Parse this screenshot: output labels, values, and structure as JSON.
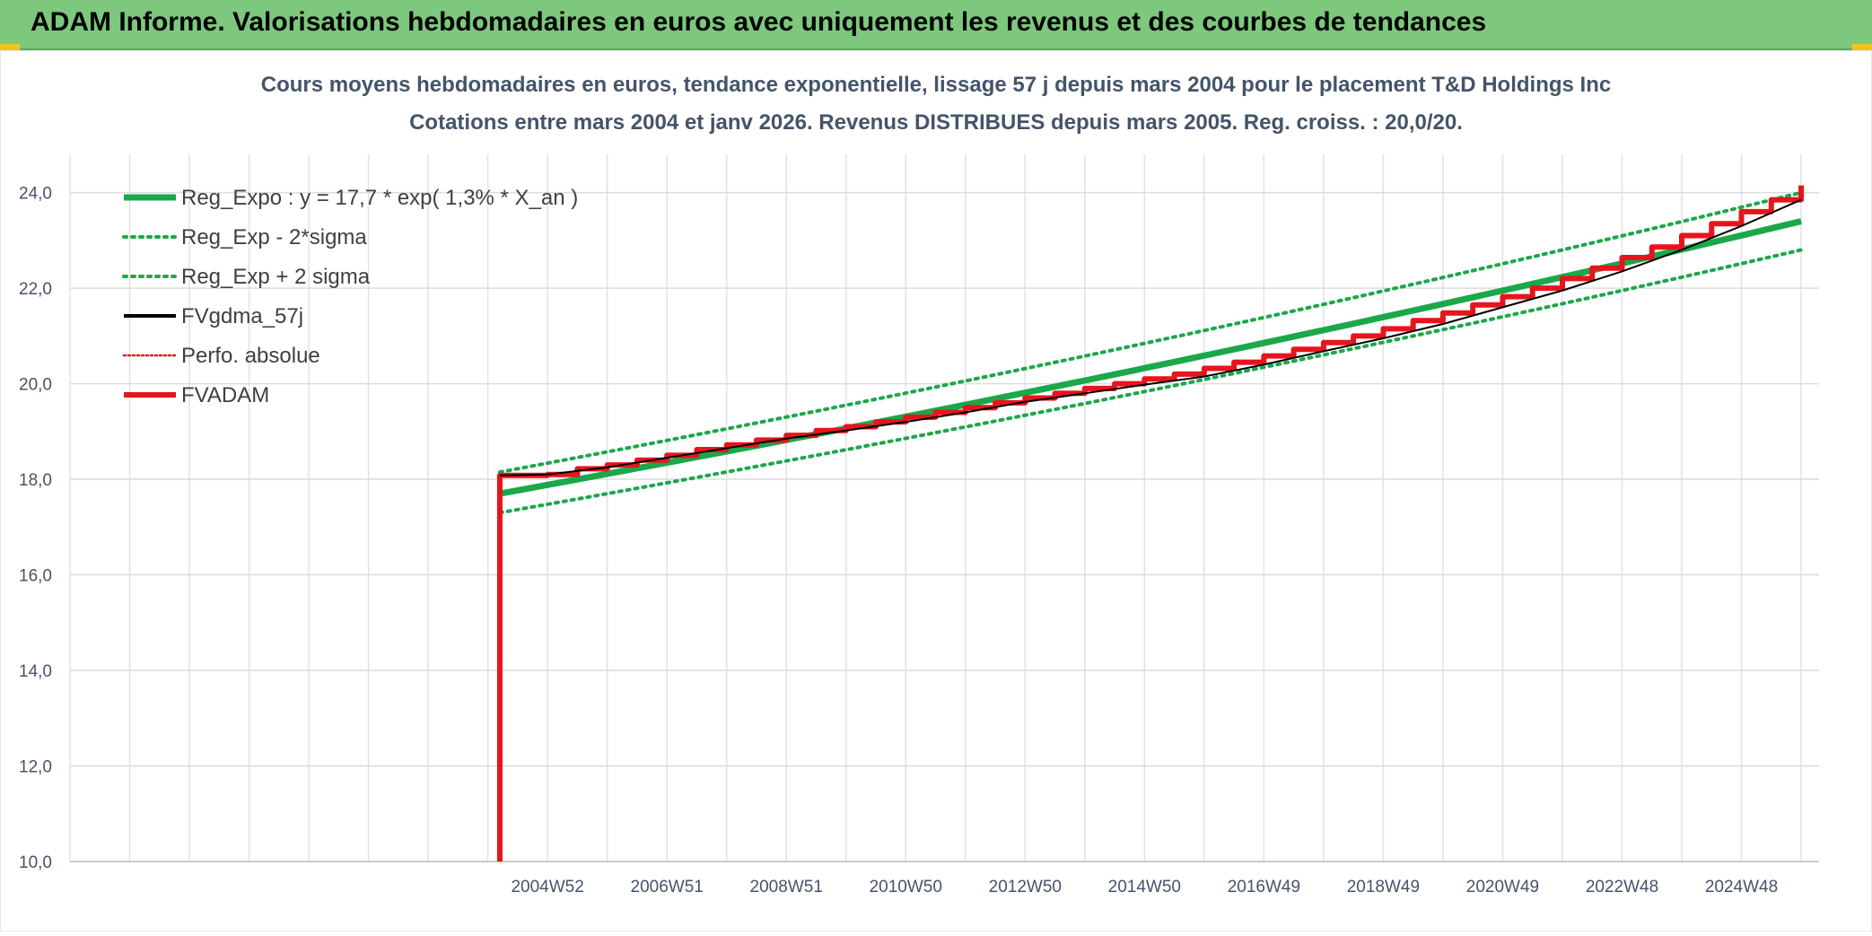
{
  "banner": {
    "title": "ADAM Informe. Valorisations hebdomadaires en euros avec uniquement les revenus et des courbes de tendances"
  },
  "colors": {
    "banner": "#7dc87d",
    "trend": "#1aa84a",
    "price": "#e8141c",
    "smoothed": "#000000",
    "grid": "#d9d9d9",
    "title": "#44546a"
  },
  "chart_data": {
    "type": "line",
    "title": "Cours moyens hebdomadaires en euros, tendance exponentielle, lissage 57 j depuis mars 2004 pour le placement T&D Holdings Inc",
    "subtitle": "Cotations entre mars 2004 et janv 2026. Revenus DISTRIBUES depuis mars 2005. Reg. croiss. : 20,0/20.",
    "xlabel": "",
    "ylabel": "",
    "ylim": [
      10,
      24.8
    ],
    "y_ticks": [
      "10,0",
      "12,0",
      "14,0",
      "16,0",
      "18,0",
      "20,0",
      "22,0",
      "24,0"
    ],
    "x_range": [
      1997.0,
      2026.3
    ],
    "x_ticks": [
      {
        "label": "2004W52",
        "year": 2005.0
      },
      {
        "label": "2006W51",
        "year": 2007.0
      },
      {
        "label": "2008W51",
        "year": 2009.0
      },
      {
        "label": "2010W50",
        "year": 2011.0
      },
      {
        "label": "2012W50",
        "year": 2013.0
      },
      {
        "label": "2014W50",
        "year": 2015.0
      },
      {
        "label": "2016W49",
        "year": 2017.0
      },
      {
        "label": "2018W49",
        "year": 2019.0
      },
      {
        "label": "2020W49",
        "year": 2021.0
      },
      {
        "label": "2022W48",
        "year": 2023.0
      },
      {
        "label": "2024W48",
        "year": 2025.0
      }
    ],
    "grid": true,
    "legend_position": "top-left",
    "series": [
      {
        "name": "Reg_Expo : y = 17,7 * exp( 1,3% *  X_an )",
        "style": "solid-thick",
        "color": "#1aa84a",
        "x": [
          2004.2,
          2026.0
        ],
        "y": [
          17.7,
          23.4
        ]
      },
      {
        "name": "Reg_Exp - 2*sigma",
        "style": "dotted",
        "color": "#1aa84a",
        "x": [
          2004.2,
          2026.0
        ],
        "y": [
          17.3,
          22.8
        ]
      },
      {
        "name": "Reg_Exp + 2 sigma",
        "style": "dotted",
        "color": "#1aa84a",
        "x": [
          2004.2,
          2026.0
        ],
        "y": [
          18.15,
          24.0
        ]
      },
      {
        "name": "FVgdma_57j",
        "style": "solid",
        "color": "#000000",
        "x": [
          2004.2,
          2005.0,
          2006.0,
          2007.0,
          2008.0,
          2009.0,
          2010.0,
          2011.0,
          2012.0,
          2013.0,
          2014.0,
          2015.0,
          2016.0,
          2017.0,
          2018.0,
          2019.0,
          2020.0,
          2021.0,
          2022.0,
          2023.0,
          2024.0,
          2025.0,
          2026.0
        ],
        "y": [
          18.08,
          18.1,
          18.25,
          18.45,
          18.65,
          18.85,
          19.02,
          19.2,
          19.4,
          19.62,
          19.8,
          19.98,
          20.15,
          20.4,
          20.68,
          20.95,
          21.25,
          21.6,
          21.95,
          22.35,
          22.8,
          23.3,
          23.85
        ]
      },
      {
        "name": "Perfo. absolue",
        "style": "dotted",
        "color": "#e8141c",
        "x": [],
        "y": []
      },
      {
        "name": "FVADAM",
        "style": "step-thick",
        "color": "#e8141c",
        "x": [
          2004.2,
          2004.2,
          2005.0,
          2005.5,
          2006.0,
          2006.5,
          2007.0,
          2007.5,
          2008.0,
          2008.5,
          2009.0,
          2009.5,
          2010.0,
          2010.5,
          2011.0,
          2011.5,
          2012.0,
          2012.5,
          2013.0,
          2013.5,
          2014.0,
          2014.5,
          2015.0,
          2015.5,
          2016.0,
          2016.5,
          2017.0,
          2017.5,
          2018.0,
          2018.5,
          2019.0,
          2019.5,
          2020.0,
          2020.5,
          2021.0,
          2021.5,
          2022.0,
          2022.5,
          2023.0,
          2023.5,
          2024.0,
          2024.5,
          2025.0,
          2025.5,
          2026.0
        ],
        "y": [
          10.0,
          18.08,
          18.1,
          18.22,
          18.3,
          18.4,
          18.5,
          18.62,
          18.72,
          18.82,
          18.92,
          19.02,
          19.1,
          19.2,
          19.3,
          19.4,
          19.5,
          19.6,
          19.7,
          19.8,
          19.9,
          20.0,
          20.1,
          20.2,
          20.32,
          20.45,
          20.58,
          20.72,
          20.86,
          21.0,
          21.15,
          21.32,
          21.48,
          21.65,
          21.82,
          22.0,
          22.2,
          22.42,
          22.64,
          22.86,
          23.1,
          23.35,
          23.6,
          23.85,
          24.15
        ]
      }
    ]
  }
}
